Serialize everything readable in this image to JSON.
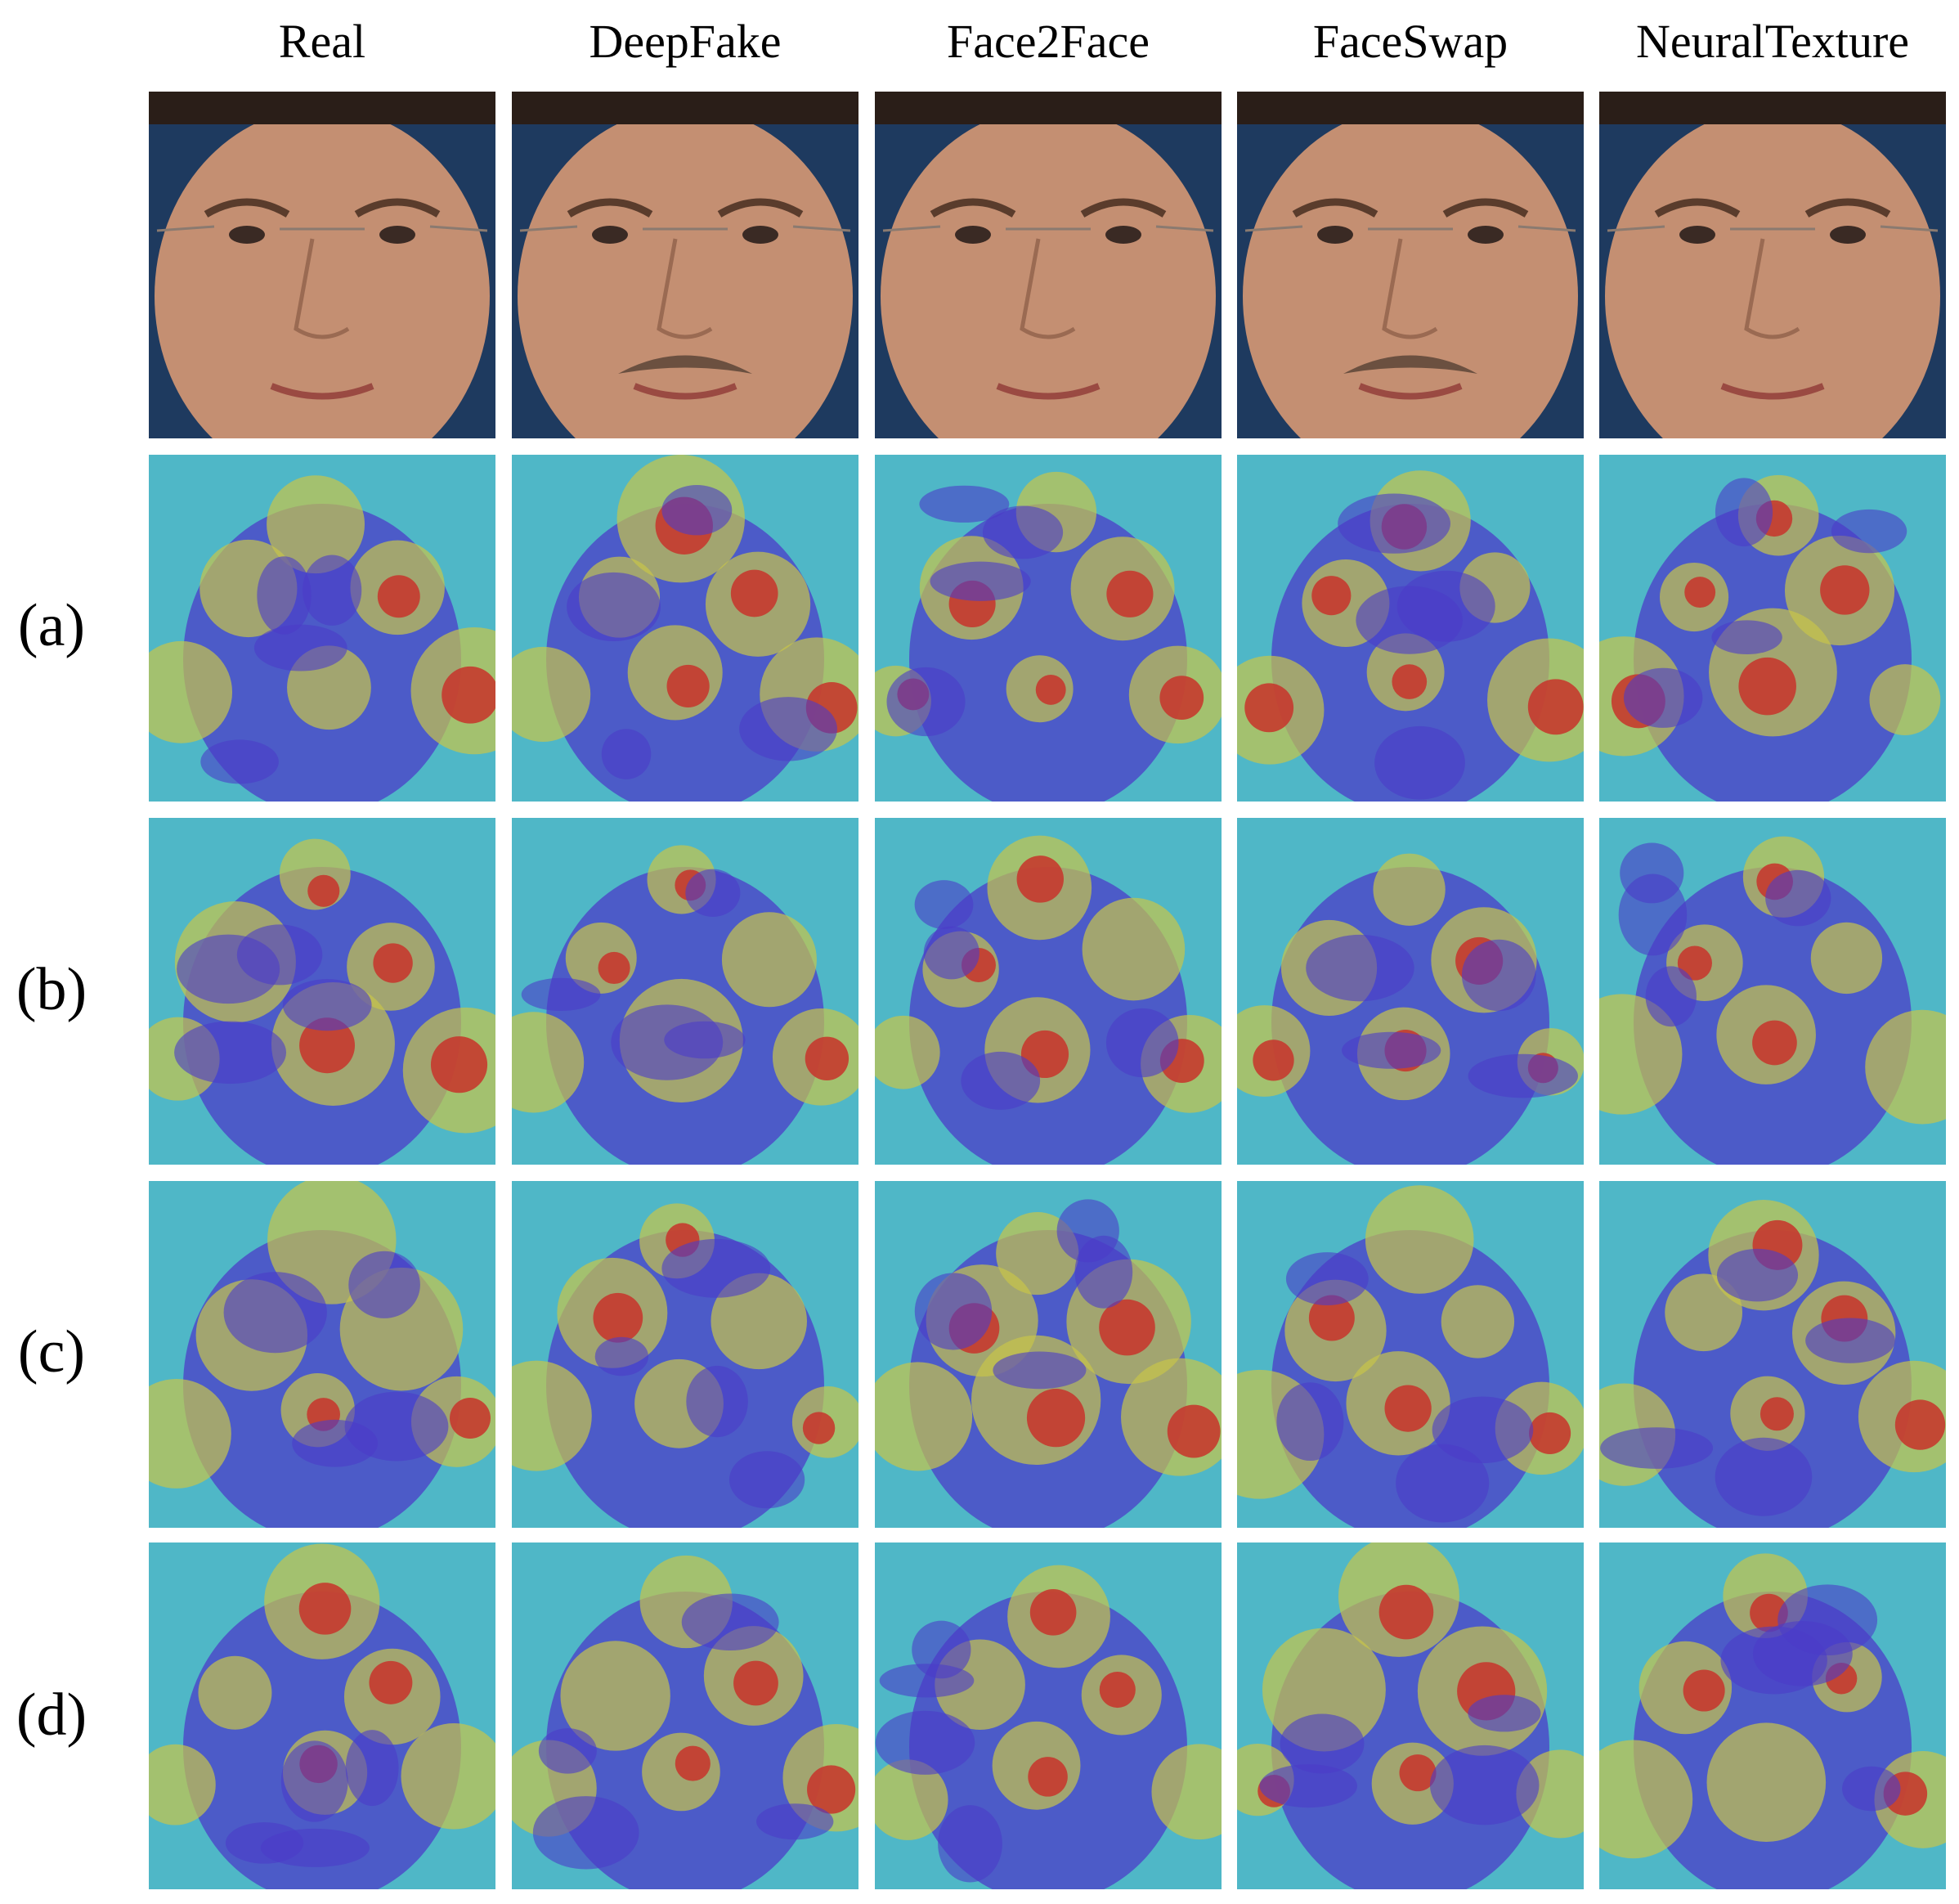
{
  "columns": [
    "Real",
    "DeepFake",
    "Face2Face",
    "FaceSwap",
    "NeuralTexture"
  ],
  "rows": [
    {
      "label": "",
      "kind": "photo"
    },
    {
      "label": "(a)",
      "kind": "heatmap"
    },
    {
      "label": "(b)",
      "kind": "heatmap"
    },
    {
      "label": "(c)",
      "kind": "heatmap"
    },
    {
      "label": "(d)",
      "kind": "heatmap"
    }
  ],
  "colors": {
    "skin": "#c48f72",
    "background_blue": "#1e3a5f",
    "heat_low": "#4b3cc8",
    "heat_mid": "#4fb7c7",
    "heat_warm": "#c7c44a",
    "heat_high": "#c8322a"
  }
}
